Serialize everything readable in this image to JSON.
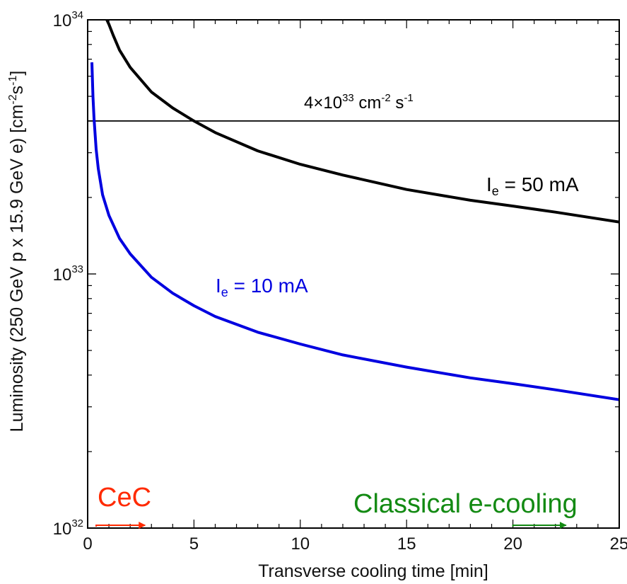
{
  "chart_data": {
    "type": "line",
    "xlabel": "Transverse cooling time [min]",
    "ylabel": "Luminosity (250 GeV p x 15.9 GeV e) [cm",
    "ylabel_exp1": "-2",
    "ylabel_mid": "s",
    "ylabel_exp2": "-1",
    "ylabel_end": "]",
    "xlim": [
      0,
      25
    ],
    "ylim": [
      1e+32,
      1e+34
    ],
    "yscale": "log",
    "x_ticks": [
      "0",
      "5",
      "10",
      "15",
      "20",
      "25"
    ],
    "y_ticks": [
      {
        "base": "10",
        "exp": "32",
        "value": 1e+32
      },
      {
        "base": "10",
        "exp": "33",
        "value": 1e+33
      },
      {
        "base": "10",
        "exp": "34",
        "value": 1e+34
      }
    ],
    "reference_line": {
      "y": 4e+33,
      "label_prefix": "4×10",
      "label_exp": "33",
      "label_mid": " cm",
      "label_exp2": "-2",
      "label_mid2": " s",
      "label_exp3": "-1",
      "color": "#000000"
    },
    "series": [
      {
        "name_main": "I",
        "name_sub": "e",
        "name_rest": " = 50 mA",
        "color": "#000000",
        "x": [
          0.9,
          1.0,
          1.2,
          1.5,
          2,
          3,
          4,
          5,
          6,
          8,
          10,
          12,
          15,
          18,
          20,
          22,
          25
        ],
        "y": [
          1e+34,
          9.6e+33,
          8.7e+33,
          7.6e+33,
          6.5e+33,
          5.2e+33,
          4.5e+33,
          4e+33,
          3.6e+33,
          3.05e+33,
          2.7e+33,
          2.45e+33,
          2.15e+33,
          1.95e+33,
          1.85e+33,
          1.75e+33,
          1.6e+33
        ]
      },
      {
        "name_main": "I",
        "name_sub": "e",
        "name_rest": " = 10 mA",
        "color": "#0000e0",
        "x": [
          0.2,
          0.25,
          0.3,
          0.4,
          0.5,
          0.7,
          1.0,
          1.5,
          2,
          3,
          4,
          5,
          6,
          8,
          10,
          12,
          15,
          18,
          20,
          22,
          25
        ],
        "y": [
          6.8e+33,
          5e+33,
          4.1e+33,
          3.1e+33,
          2.6e+33,
          2.05e+33,
          1.7e+33,
          1.38e+33,
          1.2e+33,
          9.7e+32,
          8.4e+32,
          7.5e+32,
          6.8e+32,
          5.9e+32,
          5.3e+32,
          4.8e+32,
          4.3e+32,
          3.9e+32,
          3.7e+32,
          3.5e+32,
          3.2e+32
        ]
      }
    ],
    "annotations": [
      {
        "text": "CeC",
        "color": "#ff2a00",
        "arrow_from_x": 0.4,
        "arrow_to_x": 2.7
      },
      {
        "text": "Classical e-cooling",
        "color": "#138a13",
        "arrow_from_x": 20.0,
        "arrow_to_x": 22.5
      }
    ]
  }
}
